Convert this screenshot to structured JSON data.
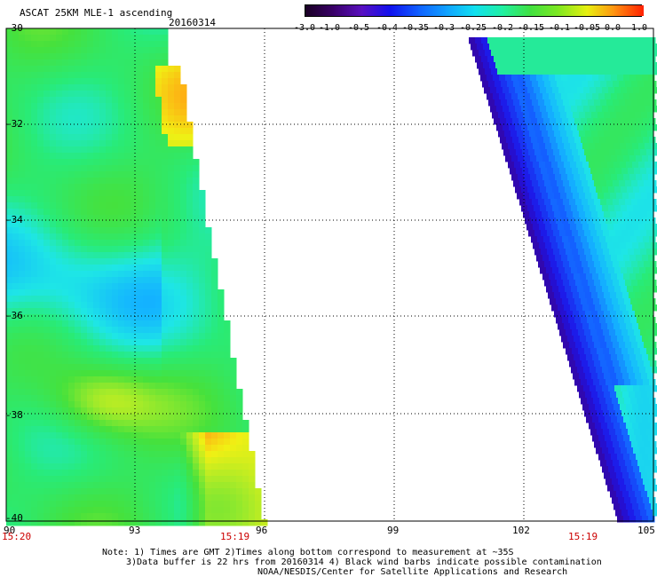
{
  "header": {
    "title": "ASCAT 25KM MLE-1 ascending",
    "date": "20160314"
  },
  "colorbar": {
    "ticks": [
      "-3.0",
      "-1.0",
      "-0.5",
      "-0.4",
      "-0.35",
      "-0.3",
      "-0.25",
      "-0.2",
      "-0.15",
      "-0.1",
      "-0.05",
      "0.0",
      "1.0"
    ],
    "colors": [
      "#1a0024",
      "#3a006a",
      "#5a10c0",
      "#1010ee",
      "#1060ff",
      "#10a0ff",
      "#10e0f0",
      "#20f0a0",
      "#40e040",
      "#80e820",
      "#e8f010",
      "#ff9010",
      "#ff2000"
    ]
  },
  "map": {
    "lat_labels": [
      "-30",
      "-32",
      "-34",
      "-36",
      "-38",
      "-40"
    ],
    "lon_labels": [
      "90",
      "93",
      "96",
      "99",
      "102",
      "105"
    ],
    "time_labels": [
      "15:20",
      "15:19",
      "15:19"
    ],
    "grid": "dotted",
    "lat_range": [
      -40,
      -30
    ],
    "lon_range": [
      90,
      105
    ]
  },
  "notes": {
    "line1": "Note: 1) Times are GMT 2)Times along bottom correspond to measurement at ~35S",
    "line2": "3)Data buffer is 22 hrs from 20160314 4) Black wind barbs indicate possible contamination",
    "line3": "NOAA/NESDIS/Center for Satellite Applications and Research"
  }
}
